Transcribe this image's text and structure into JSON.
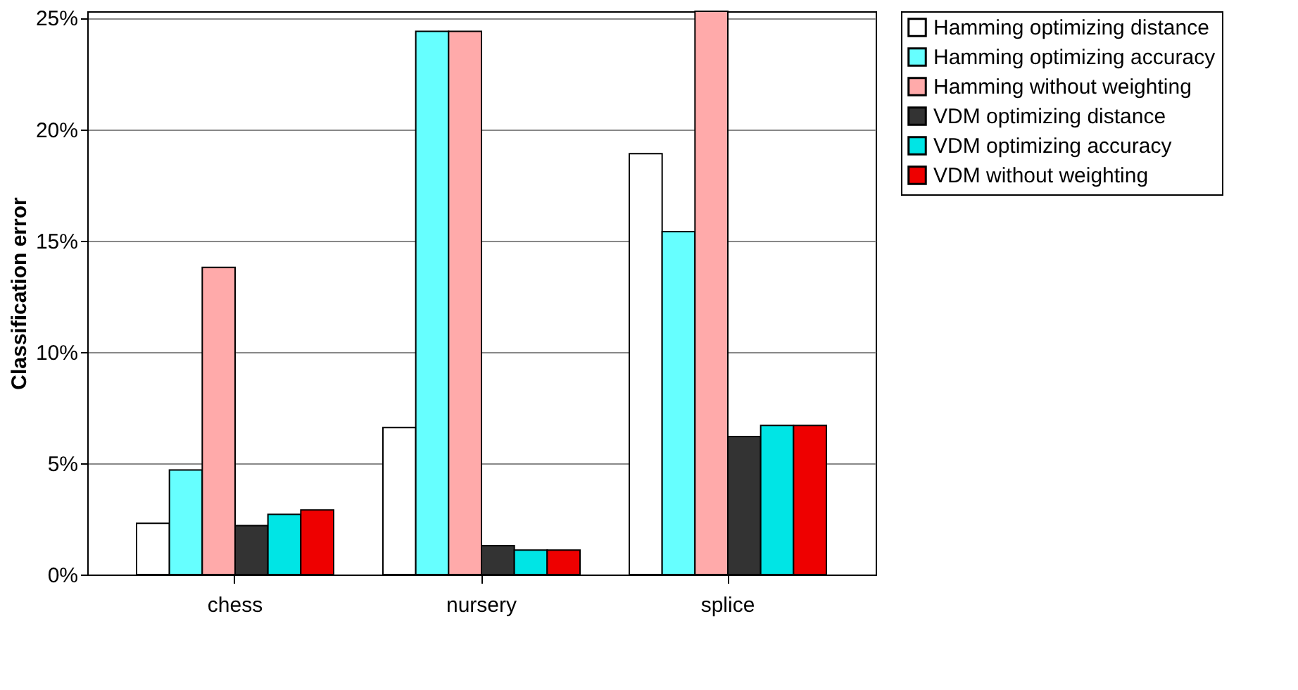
{
  "chart_data": {
    "type": "bar",
    "ylabel": "Classification error",
    "categories": [
      "chess",
      "nursery",
      "splice"
    ],
    "series": [
      {
        "name": "Hamming optimizing distance",
        "color": "#ffffff",
        "values": [
          2.3,
          6.6,
          18.9
        ]
      },
      {
        "name": "Hamming optimizing accuracy",
        "color": "#66ffff",
        "values": [
          4.7,
          24.4,
          15.4
        ]
      },
      {
        "name": "Hamming without weighting",
        "color": "#ffaaaa",
        "values": [
          13.8,
          24.4,
          25.3
        ]
      },
      {
        "name": "VDM optimizing distance",
        "color": "#333333",
        "values": [
          2.2,
          1.3,
          6.2
        ]
      },
      {
        "name": "VDM optimizing accuracy",
        "color": "#00e5e5",
        "values": [
          2.7,
          1.1,
          6.7
        ]
      },
      {
        "name": "VDM without weighting",
        "color": "#ee0000",
        "values": [
          2.9,
          1.1,
          6.7
        ]
      }
    ],
    "ylim": [
      0,
      25.3
    ],
    "yticks": [
      {
        "value": 0,
        "label": "0%"
      },
      {
        "value": 5,
        "label": "5%"
      },
      {
        "value": 10,
        "label": "10%"
      },
      {
        "value": 15,
        "label": "15%"
      },
      {
        "value": 20,
        "label": "20%"
      },
      {
        "value": 25,
        "label": "25%"
      }
    ],
    "grid": "y",
    "legend": "right"
  }
}
